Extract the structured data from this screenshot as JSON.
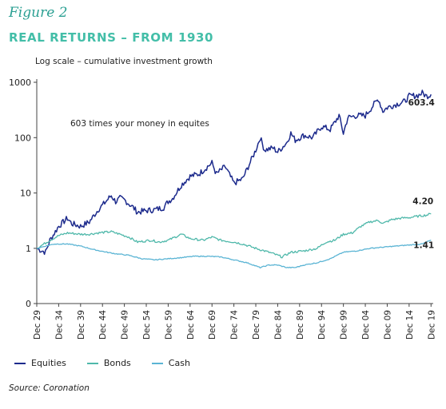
{
  "figure_label": "Figure 2",
  "chart_data": {
    "type": "line",
    "title": "REAL RETURNS – FROM 1930",
    "subtitle": "Log scale – cumulative investment growth",
    "annotation": "603 times your money in equites",
    "source": "Source: Coronation",
    "yscale": "log",
    "ylim": [
      0,
      1000
    ],
    "y_ticks": [
      1000,
      100,
      10,
      1,
      0
    ],
    "x_ticks": [
      "Dec 29",
      "Dec 34",
      "Dec 39",
      "Dec 44",
      "Dec 49",
      "Dec 54",
      "Dec 59",
      "Dec 64",
      "Dec 69",
      "Dec 74",
      "Dec 79",
      "Dec 84",
      "Dec 89",
      "Dec 94",
      "Dec 99",
      "Dec 04",
      "Dec 09",
      "Dec 14",
      "Dec 19"
    ],
    "grid": false,
    "legend_position": "bottom-left",
    "colors": {
      "Equities": "#1c2a8c",
      "Bonds": "#4fb8aa",
      "Cash": "#5ab4d4"
    },
    "end_labels": {
      "Equities": "603.4",
      "Bonds": "4.20",
      "Cash": "1.41"
    },
    "series": [
      {
        "name": "Equities",
        "points": [
          [
            1929,
            1.0
          ],
          [
            1931,
            0.85
          ],
          [
            1932,
            1.4
          ],
          [
            1934,
            2.5
          ],
          [
            1936,
            3.5
          ],
          [
            1937,
            2.8
          ],
          [
            1939,
            2.5
          ],
          [
            1941,
            3.0
          ],
          [
            1943,
            5.0
          ],
          [
            1944,
            6.0
          ],
          [
            1946,
            9.0
          ],
          [
            1947,
            7.0
          ],
          [
            1948,
            8.0
          ],
          [
            1949,
            7.5
          ],
          [
            1951,
            5.5
          ],
          [
            1952,
            4.5
          ],
          [
            1954,
            4.8
          ],
          [
            1956,
            5.0
          ],
          [
            1958,
            5.5
          ],
          [
            1959,
            7.0
          ],
          [
            1960,
            8.0
          ],
          [
            1962,
            14.0
          ],
          [
            1964,
            20.0
          ],
          [
            1966,
            22.0
          ],
          [
            1968,
            30.0
          ],
          [
            1969,
            35.0
          ],
          [
            1970,
            22.0
          ],
          [
            1972,
            30.0
          ],
          [
            1974,
            15.0
          ],
          [
            1976,
            18.0
          ],
          [
            1978,
            40.0
          ],
          [
            1979,
            60.0
          ],
          [
            1980,
            100.0
          ],
          [
            1981,
            60.0
          ],
          [
            1983,
            65.0
          ],
          [
            1984,
            55.0
          ],
          [
            1986,
            80.0
          ],
          [
            1987,
            120.0
          ],
          [
            1988,
            90.0
          ],
          [
            1990,
            110.0
          ],
          [
            1992,
            100.0
          ],
          [
            1994,
            160.0
          ],
          [
            1996,
            140.0
          ],
          [
            1998,
            250.0
          ],
          [
            1999,
            120.0
          ],
          [
            2000,
            230.0
          ],
          [
            2002,
            250.0
          ],
          [
            2004,
            250.0
          ],
          [
            2006,
            400.0
          ],
          [
            2007,
            500.0
          ],
          [
            2008,
            300.0
          ],
          [
            2009,
            350.0
          ],
          [
            2011,
            400.0
          ],
          [
            2013,
            450.0
          ],
          [
            2014,
            560.0
          ],
          [
            2016,
            580.0
          ],
          [
            2017,
            640.0
          ],
          [
            2018,
            560.0
          ],
          [
            2019,
            603.4
          ]
        ]
      },
      {
        "name": "Bonds",
        "points": [
          [
            1929,
            1.0
          ],
          [
            1932,
            1.4
          ],
          [
            1934,
            1.7
          ],
          [
            1936,
            1.9
          ],
          [
            1939,
            1.8
          ],
          [
            1941,
            1.8
          ],
          [
            1943,
            1.9
          ],
          [
            1946,
            2.0
          ],
          [
            1948,
            1.8
          ],
          [
            1950,
            1.6
          ],
          [
            1952,
            1.3
          ],
          [
            1955,
            1.4
          ],
          [
            1957,
            1.3
          ],
          [
            1959,
            1.4
          ],
          [
            1962,
            1.8
          ],
          [
            1964,
            1.5
          ],
          [
            1967,
            1.4
          ],
          [
            1969,
            1.6
          ],
          [
            1971,
            1.4
          ],
          [
            1974,
            1.3
          ],
          [
            1976,
            1.2
          ],
          [
            1979,
            1.0
          ],
          [
            1981,
            0.9
          ],
          [
            1983,
            0.8
          ],
          [
            1985,
            0.7
          ],
          [
            1987,
            0.85
          ],
          [
            1990,
            0.9
          ],
          [
            1993,
            1.0
          ],
          [
            1995,
            1.3
          ],
          [
            1997,
            1.4
          ],
          [
            1999,
            1.8
          ],
          [
            2001,
            1.9
          ],
          [
            2003,
            2.5
          ],
          [
            2005,
            3.0
          ],
          [
            2007,
            3.2
          ],
          [
            2008,
            2.8
          ],
          [
            2010,
            3.3
          ],
          [
            2012,
            3.5
          ],
          [
            2014,
            3.6
          ],
          [
            2016,
            3.8
          ],
          [
            2018,
            4.0
          ],
          [
            2019,
            4.2
          ]
        ]
      },
      {
        "name": "Cash",
        "points": [
          [
            1929,
            1.0
          ],
          [
            1931,
            1.1
          ],
          [
            1933,
            1.2
          ],
          [
            1936,
            1.2
          ],
          [
            1939,
            1.1
          ],
          [
            1942,
            0.95
          ],
          [
            1945,
            0.85
          ],
          [
            1947,
            0.8
          ],
          [
            1950,
            0.75
          ],
          [
            1953,
            0.65
          ],
          [
            1956,
            0.62
          ],
          [
            1959,
            0.65
          ],
          [
            1962,
            0.68
          ],
          [
            1965,
            0.72
          ],
          [
            1968,
            0.72
          ],
          [
            1971,
            0.7
          ],
          [
            1974,
            0.62
          ],
          [
            1977,
            0.55
          ],
          [
            1980,
            0.45
          ],
          [
            1982,
            0.5
          ],
          [
            1984,
            0.5
          ],
          [
            1986,
            0.45
          ],
          [
            1988,
            0.45
          ],
          [
            1990,
            0.5
          ],
          [
            1993,
            0.55
          ],
          [
            1996,
            0.65
          ],
          [
            1999,
            0.85
          ],
          [
            2002,
            0.9
          ],
          [
            2005,
            1.0
          ],
          [
            2008,
            1.05
          ],
          [
            2011,
            1.1
          ],
          [
            2014,
            1.15
          ],
          [
            2017,
            1.2
          ],
          [
            2019,
            1.41
          ]
        ]
      }
    ]
  }
}
